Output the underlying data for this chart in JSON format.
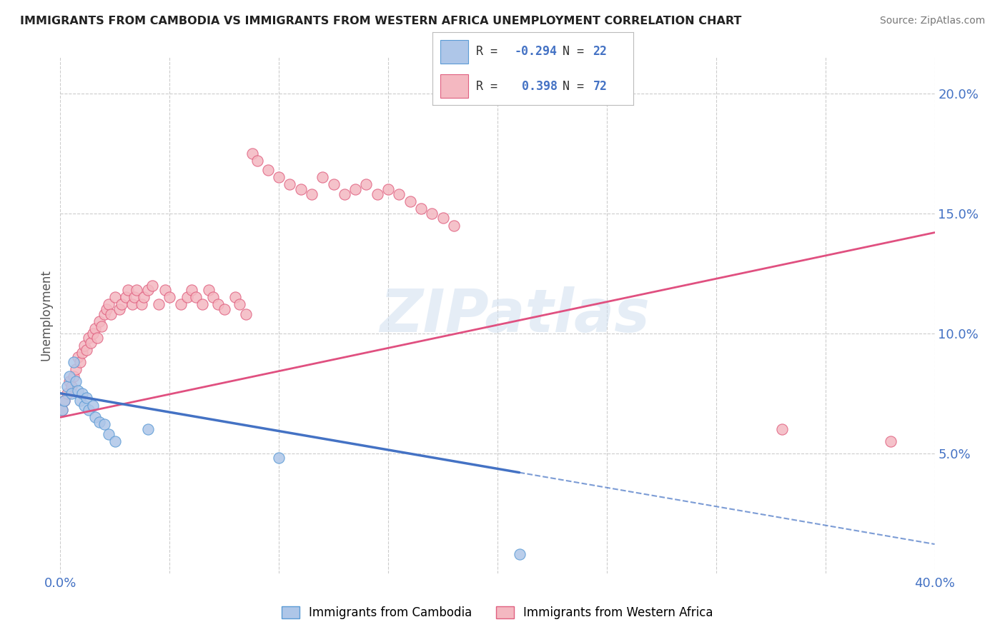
{
  "title": "IMMIGRANTS FROM CAMBODIA VS IMMIGRANTS FROM WESTERN AFRICA UNEMPLOYMENT CORRELATION CHART",
  "source": "Source: ZipAtlas.com",
  "ylabel": "Unemployment",
  "xlim": [
    0.0,
    0.4
  ],
  "ylim": [
    0.0,
    0.215
  ],
  "r_cambodia": -0.294,
  "n_cambodia": 22,
  "r_western_africa": 0.398,
  "n_western_africa": 72,
  "color_cambodia_fill": "#aec6e8",
  "color_cambodia_edge": "#5b9bd5",
  "color_western_fill": "#f4b8c1",
  "color_western_edge": "#e06080",
  "color_line_cambodia": "#4472c4",
  "color_line_western": "#e05080",
  "color_axis_blue": "#4472c4",
  "color_title": "#222222",
  "watermark": "ZIPatlas",
  "cambodia_x": [
    0.001,
    0.002,
    0.003,
    0.004,
    0.005,
    0.006,
    0.007,
    0.008,
    0.009,
    0.01,
    0.011,
    0.012,
    0.013,
    0.015,
    0.016,
    0.018,
    0.02,
    0.022,
    0.025,
    0.04,
    0.1,
    0.21
  ],
  "cambodia_y": [
    0.068,
    0.072,
    0.078,
    0.082,
    0.075,
    0.088,
    0.08,
    0.076,
    0.072,
    0.075,
    0.07,
    0.073,
    0.068,
    0.07,
    0.065,
    0.063,
    0.062,
    0.058,
    0.055,
    0.06,
    0.048,
    0.008
  ],
  "western_x": [
    0.001,
    0.002,
    0.003,
    0.004,
    0.005,
    0.006,
    0.007,
    0.008,
    0.009,
    0.01,
    0.011,
    0.012,
    0.013,
    0.014,
    0.015,
    0.016,
    0.017,
    0.018,
    0.019,
    0.02,
    0.021,
    0.022,
    0.023,
    0.025,
    0.027,
    0.028,
    0.03,
    0.031,
    0.033,
    0.034,
    0.035,
    0.037,
    0.038,
    0.04,
    0.042,
    0.045,
    0.048,
    0.05,
    0.055,
    0.058,
    0.06,
    0.062,
    0.065,
    0.068,
    0.07,
    0.072,
    0.075,
    0.08,
    0.082,
    0.085,
    0.088,
    0.09,
    0.095,
    0.1,
    0.105,
    0.11,
    0.115,
    0.12,
    0.125,
    0.13,
    0.135,
    0.14,
    0.145,
    0.15,
    0.155,
    0.16,
    0.165,
    0.17,
    0.175,
    0.18,
    0.33,
    0.38
  ],
  "western_y": [
    0.068,
    0.072,
    0.075,
    0.08,
    0.078,
    0.082,
    0.085,
    0.09,
    0.088,
    0.092,
    0.095,
    0.093,
    0.098,
    0.096,
    0.1,
    0.102,
    0.098,
    0.105,
    0.103,
    0.108,
    0.11,
    0.112,
    0.108,
    0.115,
    0.11,
    0.112,
    0.115,
    0.118,
    0.112,
    0.115,
    0.118,
    0.112,
    0.115,
    0.118,
    0.12,
    0.112,
    0.118,
    0.115,
    0.112,
    0.115,
    0.118,
    0.115,
    0.112,
    0.118,
    0.115,
    0.112,
    0.11,
    0.115,
    0.112,
    0.108,
    0.175,
    0.172,
    0.168,
    0.165,
    0.162,
    0.16,
    0.158,
    0.165,
    0.162,
    0.158,
    0.16,
    0.162,
    0.158,
    0.16,
    0.158,
    0.155,
    0.152,
    0.15,
    0.148,
    0.145,
    0.06,
    0.055
  ],
  "trendline_cambodia_x0": 0.0,
  "trendline_cambodia_y0": 0.075,
  "trendline_cambodia_x1": 0.21,
  "trendline_cambodia_y1": 0.042,
  "trendline_cambodia_xdash1": 0.21,
  "trendline_cambodia_xdash2": 0.4,
  "trendline_western_x0": 0.0,
  "trendline_western_y0": 0.065,
  "trendline_western_x1": 0.4,
  "trendline_western_y1": 0.142
}
